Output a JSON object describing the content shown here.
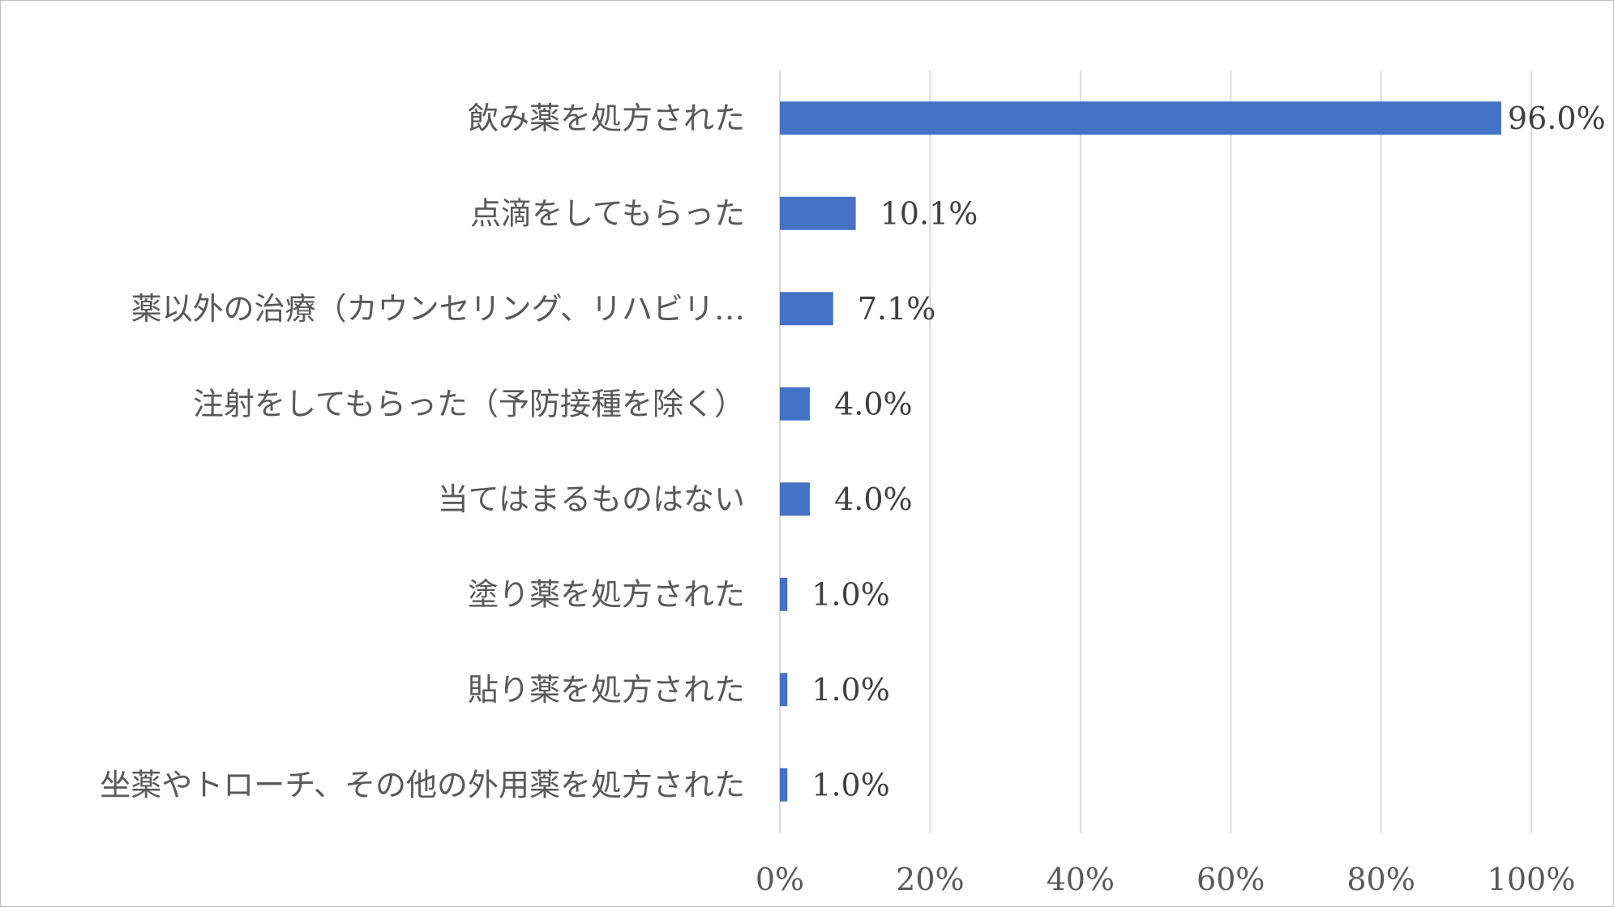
{
  "chart_data": {
    "type": "bar",
    "orientation": "horizontal",
    "categories": [
      "飲み薬を処方された",
      "点滴をしてもらった",
      "薬以外の治療（カウンセリング、リハビリ…",
      "注射をしてもらった（予防接種を除く）",
      "当てはまるものはない",
      "塗り薬を処方された",
      "貼り薬を処方された",
      "坐薬やトローチ、その他の外用薬を処方された"
    ],
    "values": [
      96.0,
      10.1,
      7.1,
      4.0,
      4.0,
      1.0,
      1.0,
      1.0
    ],
    "value_labels": [
      "96.0%",
      "10.1%",
      "7.1%",
      "4.0%",
      "4.0%",
      "1.0%",
      "1.0%",
      "1.0%"
    ],
    "x_ticks": [
      "0%",
      "20%",
      "40%",
      "60%",
      "80%",
      "100%"
    ],
    "xlim": [
      0,
      100
    ],
    "title": "",
    "xlabel": "",
    "ylabel": "",
    "grid": "vertical",
    "legend": "none",
    "bar_color": "#4472c4",
    "grid_color": "#d9d9d9",
    "border_color": "#bfbfbf"
  }
}
